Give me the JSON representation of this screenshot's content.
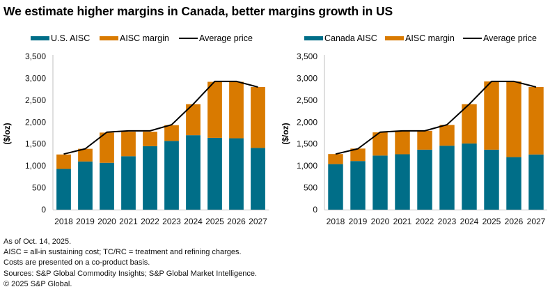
{
  "title": "We estimate higher margins in Canada, better margins growth in US",
  "colors": {
    "aisc": "#006E88",
    "margin": "#D97A00",
    "price": "#000000",
    "axis": "#BFBFBF"
  },
  "chart_data": [
    {
      "type": "bar",
      "stacked": true,
      "title": "",
      "xlabel": "",
      "ylabel": "($/oz)",
      "ylim": [
        0,
        3500
      ],
      "yticks": [
        "0",
        "500",
        "1,000",
        "1,500",
        "2,000",
        "2,500",
        "3,000",
        "3,500"
      ],
      "ytick_values": [
        0,
        500,
        1000,
        1500,
        2000,
        2500,
        3000,
        3500
      ],
      "grid": false,
      "legend_position": "top",
      "categories": [
        "2018",
        "2019",
        "2020",
        "2021",
        "2022",
        "2023",
        "2024",
        "2025",
        "2026",
        "2027"
      ],
      "series": [
        {
          "name": "U.S. AISC",
          "kind": "bar",
          "values": [
            930,
            1100,
            1070,
            1220,
            1450,
            1570,
            1700,
            1640,
            1630,
            1410
          ]
        },
        {
          "name": "AISC margin",
          "kind": "bar",
          "values": [
            330,
            290,
            690,
            560,
            330,
            360,
            710,
            1280,
            1290,
            1390
          ]
        },
        {
          "name": "Average price",
          "kind": "line",
          "values": [
            1270,
            1390,
            1770,
            1800,
            1800,
            1940,
            2410,
            2930,
            2930,
            2800
          ]
        }
      ]
    },
    {
      "type": "bar",
      "stacked": true,
      "title": "",
      "xlabel": "",
      "ylabel": "($/oz)",
      "ylim": [
        0,
        3500
      ],
      "yticks": [
        "0",
        "500",
        "1,000",
        "1,500",
        "2,000",
        "2,500",
        "3,000",
        "3,500"
      ],
      "ytick_values": [
        0,
        500,
        1000,
        1500,
        2000,
        2500,
        3000,
        3500
      ],
      "grid": false,
      "legend_position": "top",
      "categories": [
        "2018",
        "2019",
        "2020",
        "2021",
        "2022",
        "2023",
        "2024",
        "2025",
        "2026",
        "2027"
      ],
      "series": [
        {
          "name": "Canada AISC",
          "kind": "bar",
          "values": [
            1040,
            1110,
            1235,
            1265,
            1370,
            1460,
            1510,
            1370,
            1200,
            1260
          ]
        },
        {
          "name": "AISC margin",
          "kind": "bar",
          "values": [
            230,
            285,
            530,
            530,
            430,
            475,
            900,
            1560,
            1730,
            1540
          ]
        },
        {
          "name": "Average price",
          "kind": "line",
          "values": [
            1270,
            1390,
            1770,
            1800,
            1800,
            1940,
            2410,
            2930,
            2930,
            2800
          ]
        }
      ]
    }
  ],
  "footer": [
    "As of Oct. 14, 2025.",
    "AISC = all-in sustaining cost; TC/RC = treatment and refining charges.",
    "Costs are presented on a co-product basis.",
    "Sources: S&P Global Commodity Insights; S&P Global Market Intelligence.",
    "© 2025 S&P Global."
  ]
}
